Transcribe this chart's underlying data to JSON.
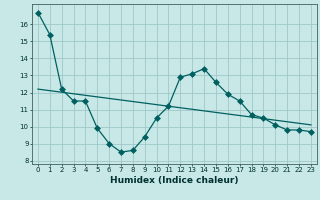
{
  "xlabel": "Humidex (Indice chaleur)",
  "bg_color": "#c8e8e8",
  "grid_color": "#a0c8c8",
  "line_color": "#006060",
  "xlim": [
    -0.5,
    23.5
  ],
  "ylim": [
    7.8,
    17.2
  ],
  "yticks": [
    8,
    9,
    10,
    11,
    12,
    13,
    14,
    15,
    16
  ],
  "xticks": [
    0,
    1,
    2,
    3,
    4,
    5,
    6,
    7,
    8,
    9,
    10,
    11,
    12,
    13,
    14,
    15,
    16,
    17,
    18,
    19,
    20,
    21,
    22,
    23
  ],
  "series1_x": [
    0,
    1,
    2,
    3,
    4,
    5,
    6,
    7,
    8,
    9,
    10,
    11,
    12,
    13,
    14,
    15,
    16,
    17,
    18,
    19,
    20,
    21,
    22,
    23
  ],
  "series1_y": [
    16.7,
    15.4,
    12.2,
    11.5,
    11.5,
    9.9,
    9.0,
    8.5,
    8.6,
    9.4,
    10.5,
    11.2,
    12.9,
    13.1,
    13.4,
    12.6,
    11.9,
    11.5,
    10.7,
    10.5,
    10.1,
    9.8,
    9.8,
    9.7
  ],
  "series2_x": [
    0,
    23
  ],
  "series2_y": [
    12.2,
    10.1
  ],
  "tick_fontsize": 5.0,
  "xlabel_fontsize": 6.5,
  "marker_size": 3.0,
  "line_width": 0.9
}
